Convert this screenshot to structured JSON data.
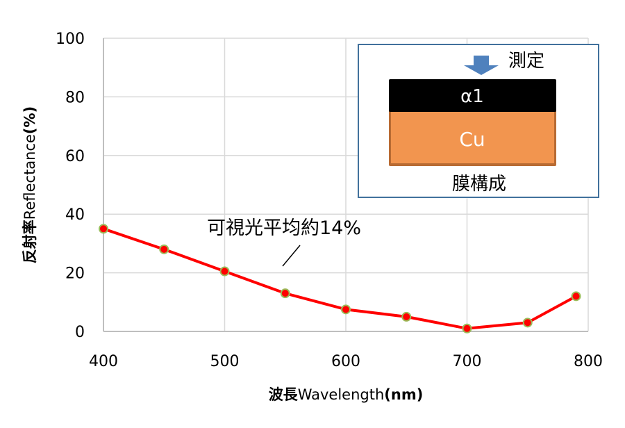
{
  "chart_data": {
    "type": "line",
    "title": "",
    "xlabel": "波長Wavelength(nm)",
    "xlabel_parts": {
      "jp": "波長",
      "en": "Wavelength",
      "unit": "(nm)"
    },
    "ylabel": "反射率Reflectance(%)",
    "ylabel_parts": {
      "jp": "反射率",
      "en": "Reflectance",
      "unit": "(%)"
    },
    "xlim": [
      400,
      800
    ],
    "ylim": [
      0,
      100
    ],
    "xticks": [
      400,
      500,
      600,
      700,
      800
    ],
    "yticks": [
      0,
      20,
      40,
      60,
      80,
      100
    ],
    "grid": true,
    "series": [
      {
        "name": "α1 on Cu",
        "color": "#ff0000",
        "marker_edge_color": "#9bbb59",
        "x": [
          400,
          450,
          500,
          550,
          600,
          650,
          700,
          750,
          790
        ],
        "values": [
          35,
          28,
          20.5,
          13,
          7.5,
          5,
          1,
          3,
          12
        ]
      }
    ],
    "annotation": {
      "text": "可視光平均約14%"
    }
  },
  "inset": {
    "measure_label": "測定",
    "top_layer": "α1",
    "bottom_layer": "Cu",
    "caption": "膜構成",
    "colors": {
      "border": "#41719c",
      "arrow": "#4f81bd",
      "top_layer": "#000000",
      "bottom_layer": "#f2954f",
      "bottom_layer_edge": "#b86b33"
    }
  },
  "tick_labels": {
    "x": [
      "400",
      "500",
      "600",
      "700",
      "800"
    ],
    "y": [
      "0",
      "20",
      "40",
      "60",
      "80",
      "100"
    ]
  }
}
